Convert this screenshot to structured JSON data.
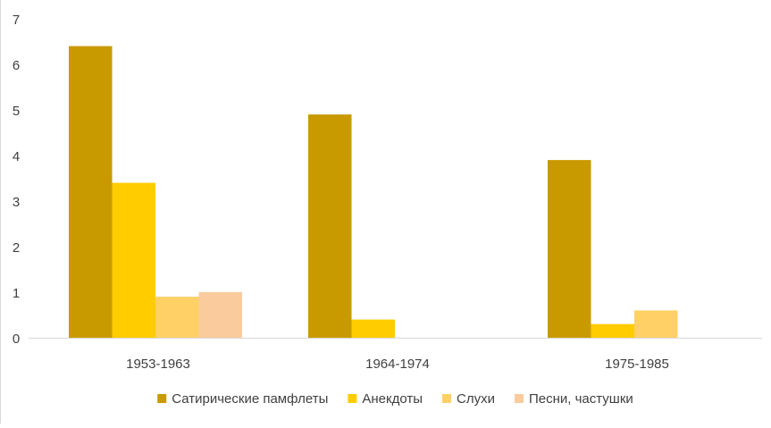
{
  "chart_data": {
    "type": "bar",
    "title": "",
    "xlabel": "",
    "ylabel": "",
    "categories": [
      "1953-1963",
      "1964-1974",
      "1975-1985"
    ],
    "series": [
      {
        "name": "Сатирические памфлеты",
        "color": "#C99A00",
        "values": [
          6.4,
          4.9,
          3.9
        ]
      },
      {
        "name": "Анекдоты",
        "color": "#FFCC00",
        "values": [
          3.4,
          0.4,
          0.3
        ]
      },
      {
        "name": "Слухи",
        "color": "#FFD066",
        "values": [
          0.9,
          null,
          0.6
        ]
      },
      {
        "name": "Песни, частушки",
        "color": "#FACB9C",
        "values": [
          1.0,
          null,
          null
        ]
      }
    ],
    "ylim": [
      0,
      7
    ],
    "yticks": [
      "0",
      "1",
      "2",
      "3",
      "4",
      "5",
      "6",
      "7"
    ],
    "grid": false,
    "legend": "bottom"
  }
}
